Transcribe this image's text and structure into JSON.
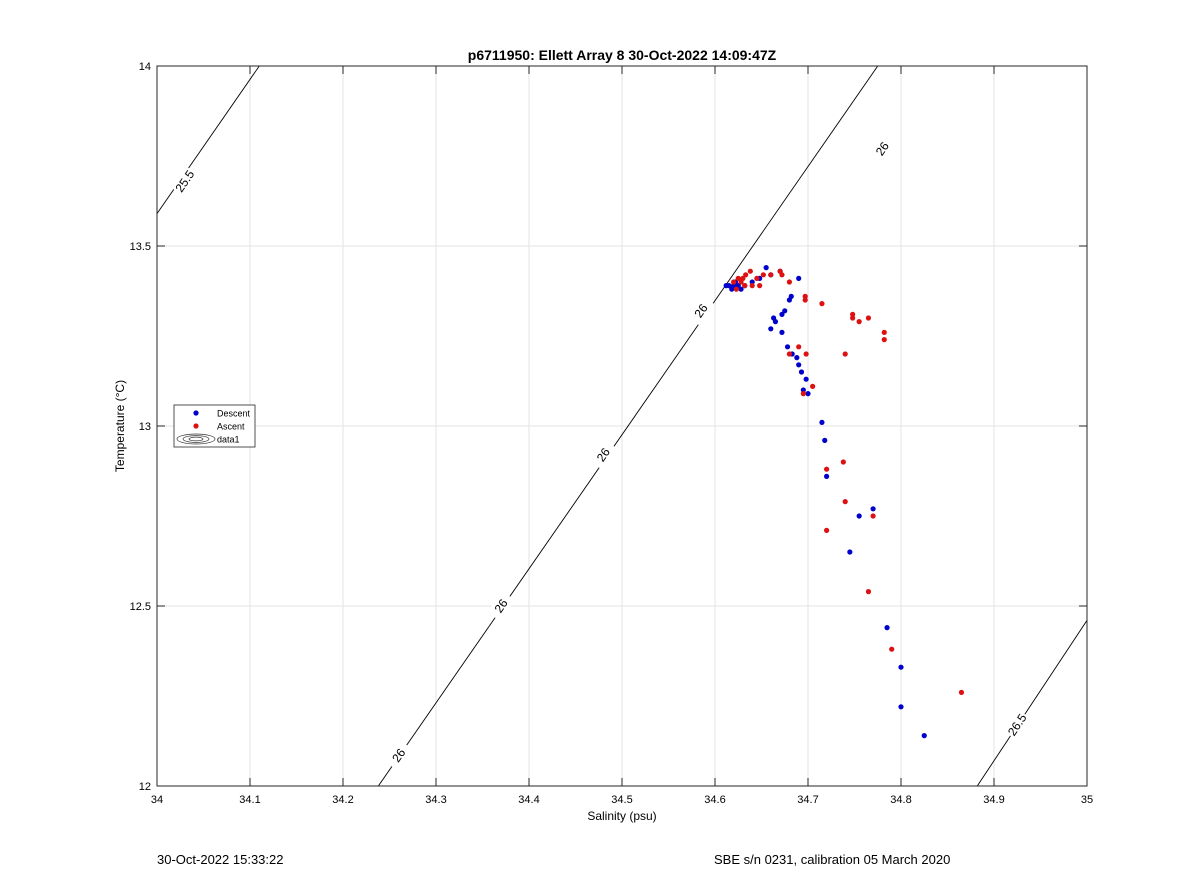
{
  "chart_data": {
    "type": "scatter",
    "title": "p6711950: Ellett Array 8 30-Oct-2022 14:09:47Z",
    "xlabel": "Salinity (psu)",
    "ylabel": "Temperature (°C)",
    "xlim": [
      34,
      35
    ],
    "ylim": [
      12,
      14
    ],
    "x_ticks": [
      "34",
      "34.1",
      "34.2",
      "34.3",
      "34.4",
      "34.5",
      "34.6",
      "34.7",
      "34.8",
      "34.9",
      "35"
    ],
    "y_ticks": [
      "12",
      "12.5",
      "13",
      "13.5",
      "14"
    ],
    "grid": true,
    "legend_position": "left",
    "legend": [
      "Descent",
      "Ascent",
      "data1"
    ],
    "contours": [
      {
        "label": "25.5",
        "points": [
          [
            34.0,
            13.59
          ],
          [
            34.11,
            14.0
          ]
        ],
        "label_at": [
          34.03,
          13.68
        ]
      },
      {
        "label": "26",
        "points": [
          [
            34.238,
            12.0
          ],
          [
            34.775,
            14.0
          ]
        ],
        "label_at_list": [
          [
            34.26,
            12.085
          ],
          [
            34.37,
            12.5
          ],
          [
            34.48,
            12.92
          ],
          [
            34.585,
            13.32
          ],
          [
            34.78,
            13.77
          ]
        ]
      },
      {
        "label": "26.5",
        "points": [
          [
            34.882,
            12.0
          ],
          [
            35.0,
            12.46
          ]
        ],
        "label_at": [
          34.925,
          12.17
        ]
      }
    ],
    "series": [
      {
        "name": "Descent",
        "color": "#0000CC",
        "points": [
          [
            34.825,
            12.14
          ],
          [
            34.8,
            12.22
          ],
          [
            34.8,
            12.33
          ],
          [
            34.785,
            12.44
          ],
          [
            34.745,
            12.65
          ],
          [
            34.755,
            12.75
          ],
          [
            34.77,
            12.77
          ],
          [
            34.72,
            12.86
          ],
          [
            34.718,
            12.96
          ],
          [
            34.715,
            13.01
          ],
          [
            34.7,
            13.09
          ],
          [
            34.695,
            13.1
          ],
          [
            34.698,
            13.13
          ],
          [
            34.693,
            13.15
          ],
          [
            34.69,
            13.17
          ],
          [
            34.688,
            13.19
          ],
          [
            34.683,
            13.2
          ],
          [
            34.678,
            13.22
          ],
          [
            34.672,
            13.26
          ],
          [
            34.665,
            13.29
          ],
          [
            34.66,
            13.27
          ],
          [
            34.663,
            13.3
          ],
          [
            34.672,
            13.31
          ],
          [
            34.675,
            13.32
          ],
          [
            34.68,
            13.35
          ],
          [
            34.682,
            13.36
          ],
          [
            34.69,
            13.41
          ],
          [
            34.67,
            13.43
          ],
          [
            34.66,
            13.42
          ],
          [
            34.655,
            13.44
          ],
          [
            34.648,
            13.41
          ],
          [
            34.64,
            13.4
          ],
          [
            34.632,
            13.39
          ],
          [
            34.625,
            13.39
          ],
          [
            34.62,
            13.39
          ],
          [
            34.615,
            13.39
          ],
          [
            34.612,
            13.39
          ],
          [
            34.618,
            13.38
          ],
          [
            34.628,
            13.38
          ],
          [
            34.622,
            13.4
          ]
        ]
      },
      {
        "name": "Ascent",
        "color": "#DD1111",
        "points": [
          [
            34.865,
            12.26
          ],
          [
            34.79,
            12.38
          ],
          [
            34.765,
            12.54
          ],
          [
            34.72,
            12.71
          ],
          [
            34.77,
            12.75
          ],
          [
            34.74,
            12.79
          ],
          [
            34.738,
            12.9
          ],
          [
            34.72,
            12.88
          ],
          [
            34.695,
            13.09
          ],
          [
            34.705,
            13.11
          ],
          [
            34.698,
            13.2
          ],
          [
            34.74,
            13.2
          ],
          [
            34.68,
            13.2
          ],
          [
            34.69,
            13.22
          ],
          [
            34.782,
            13.24
          ],
          [
            34.782,
            13.26
          ],
          [
            34.765,
            13.3
          ],
          [
            34.755,
            13.29
          ],
          [
            34.748,
            13.3
          ],
          [
            34.748,
            13.31
          ],
          [
            34.715,
            13.34
          ],
          [
            34.697,
            13.35
          ],
          [
            34.697,
            13.36
          ],
          [
            34.68,
            13.4
          ],
          [
            34.672,
            13.42
          ],
          [
            34.67,
            13.43
          ],
          [
            34.66,
            13.42
          ],
          [
            34.652,
            13.42
          ],
          [
            34.645,
            13.41
          ],
          [
            34.638,
            13.43
          ],
          [
            34.633,
            13.42
          ],
          [
            34.63,
            13.41
          ],
          [
            34.628,
            13.4
          ],
          [
            34.625,
            13.41
          ],
          [
            34.62,
            13.4
          ],
          [
            34.632,
            13.39
          ],
          [
            34.64,
            13.39
          ],
          [
            34.648,
            13.39
          ],
          [
            34.623,
            13.38
          ]
        ]
      }
    ]
  },
  "footer": {
    "left": "30-Oct-2022 15:33:22",
    "right": "SBE s/n 0231, calibration 05 March 2020"
  }
}
